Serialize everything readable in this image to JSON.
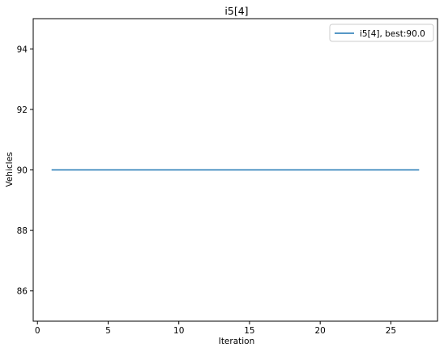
{
  "chart_data": {
    "type": "line",
    "title": "i5[4]",
    "xlabel": "Iteration",
    "ylabel": "Vehicles",
    "xlim": [
      -0.3,
      28.3
    ],
    "ylim": [
      85,
      95
    ],
    "xticks": [
      0,
      5,
      10,
      15,
      20,
      25
    ],
    "yticks": [
      86,
      88,
      90,
      92,
      94
    ],
    "grid": false,
    "legend_position": "top-right",
    "series": [
      {
        "name": "i5[4], best:90.0",
        "color": "#1f77b4",
        "x": [
          1,
          2,
          3,
          4,
          5,
          6,
          7,
          8,
          9,
          10,
          11,
          12,
          13,
          14,
          15,
          16,
          17,
          18,
          19,
          20,
          21,
          22,
          23,
          24,
          25,
          26,
          27
        ],
        "y": [
          90,
          90,
          90,
          90,
          90,
          90,
          90,
          90,
          90,
          90,
          90,
          90,
          90,
          90,
          90,
          90,
          90,
          90,
          90,
          90,
          90,
          90,
          90,
          90,
          90,
          90,
          90
        ]
      }
    ]
  }
}
